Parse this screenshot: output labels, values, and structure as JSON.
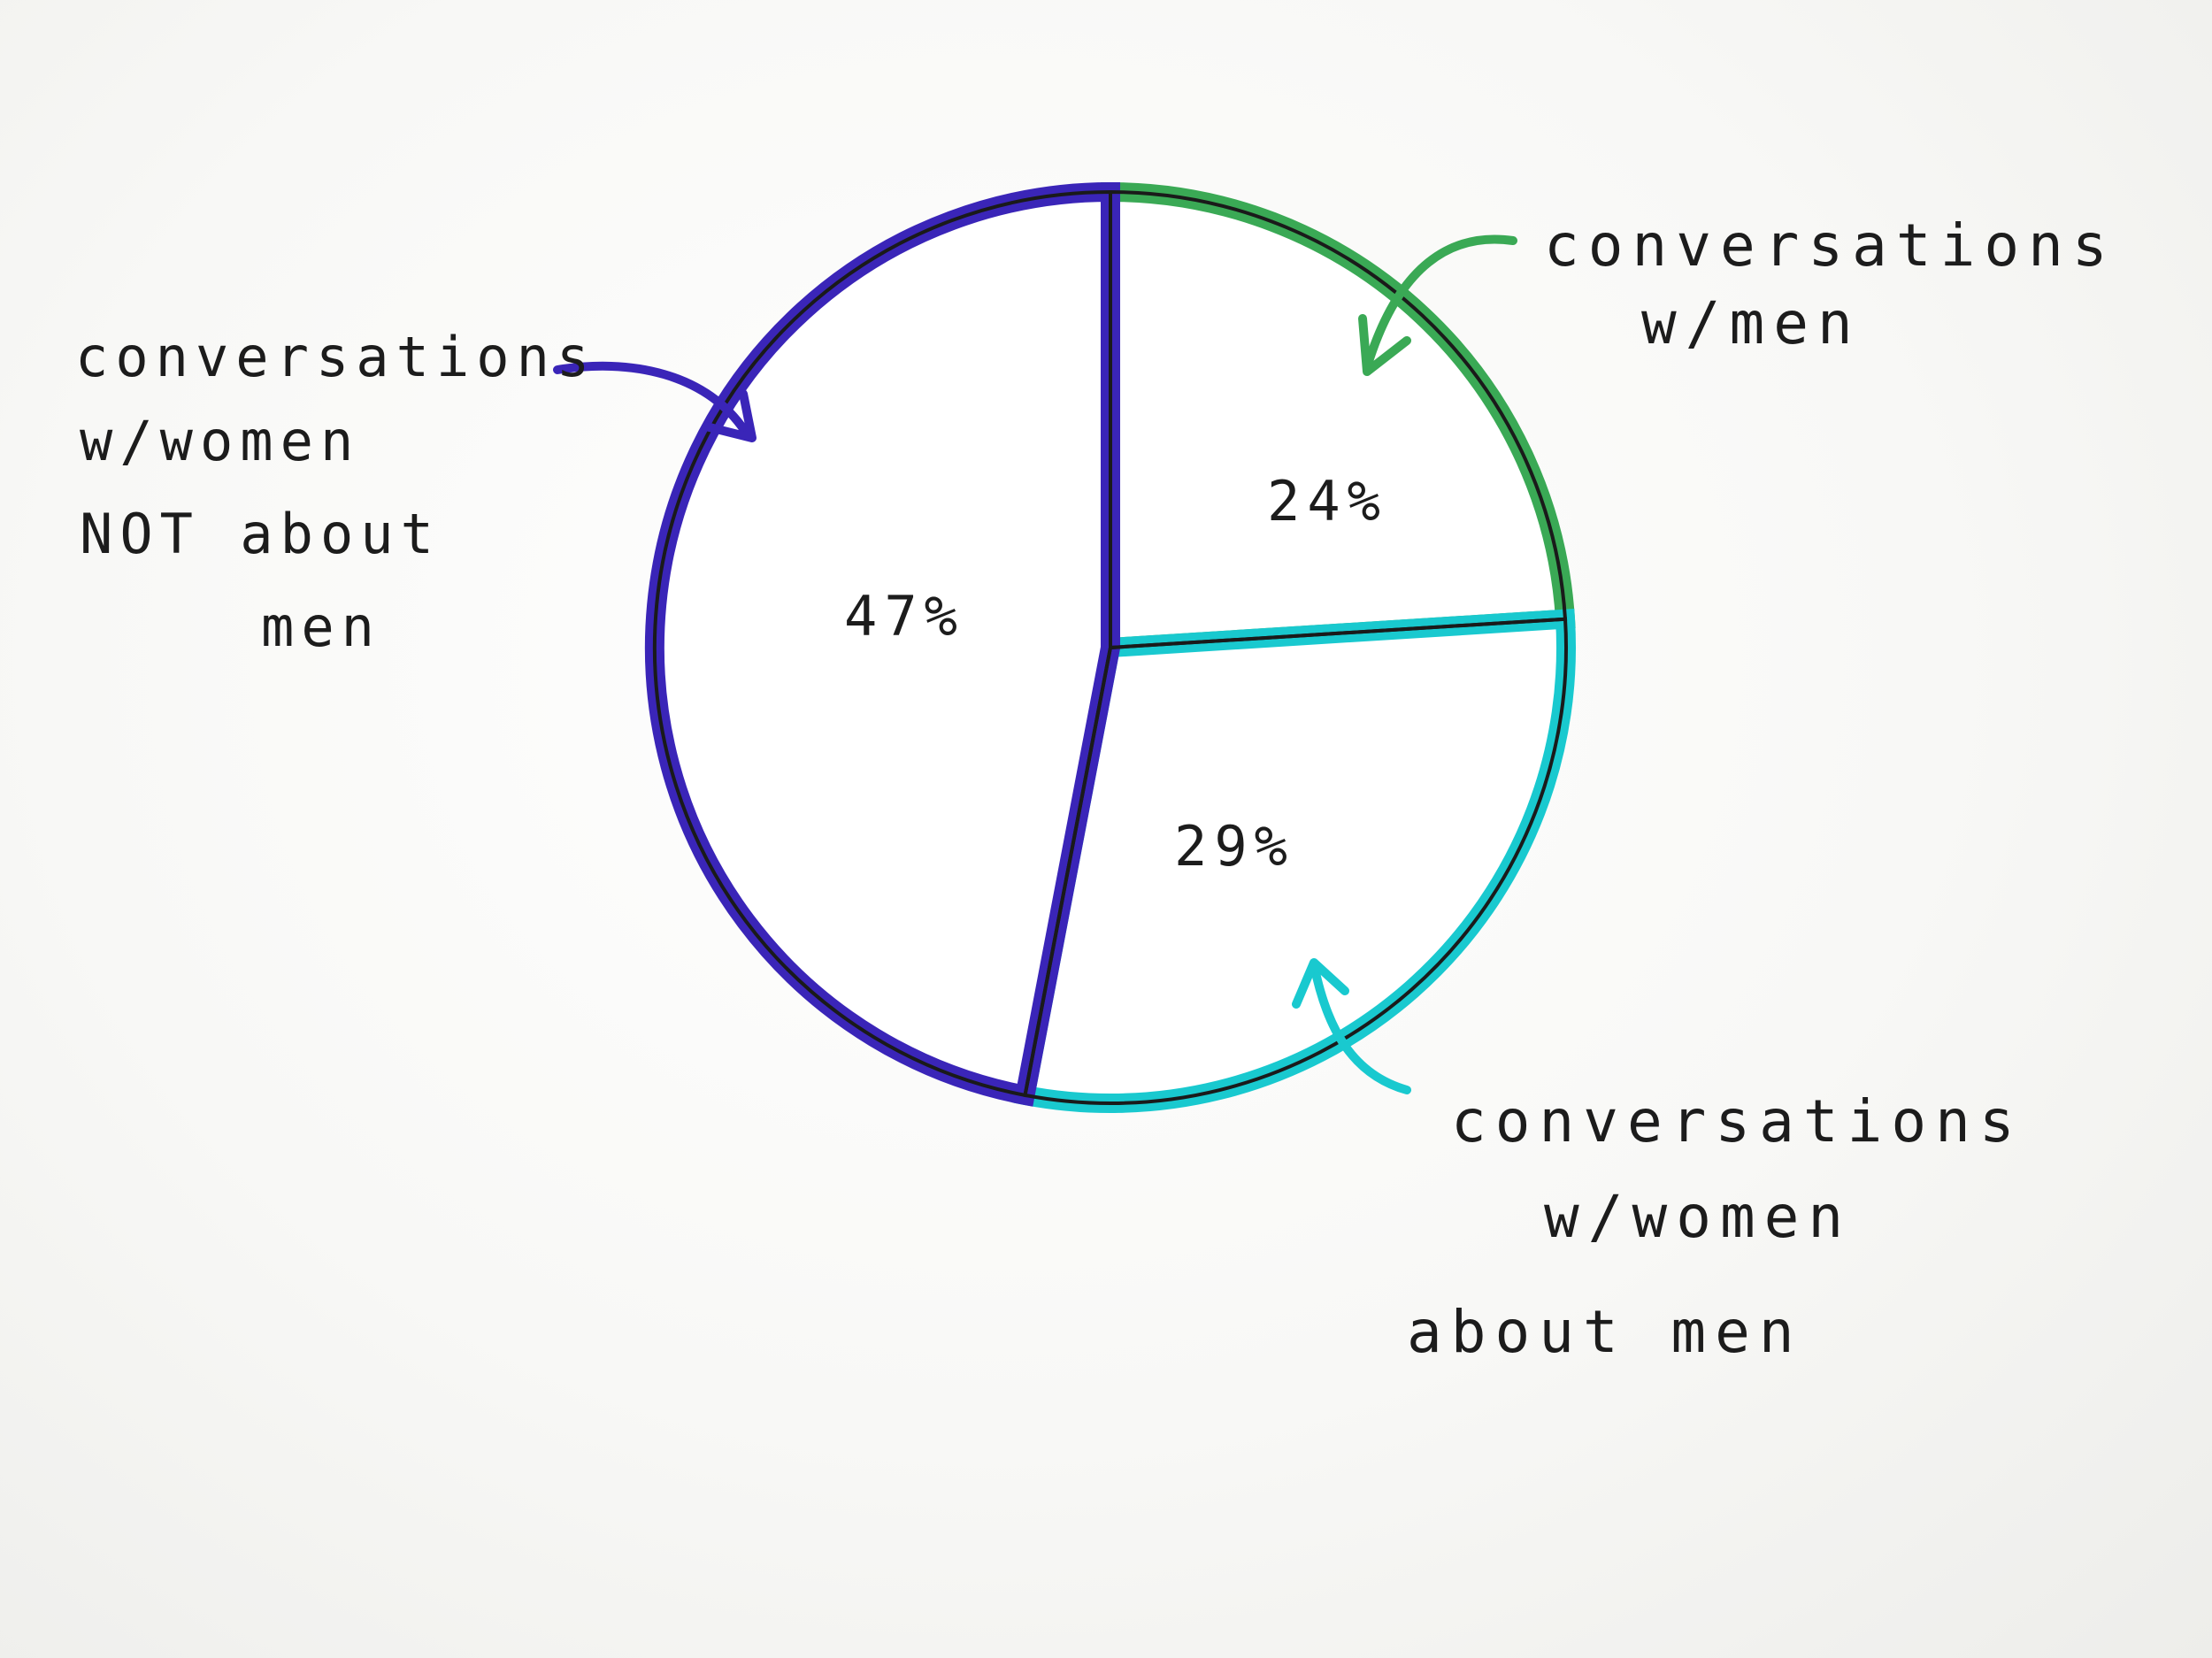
{
  "chart_data": {
    "type": "pie",
    "title": "",
    "start": "12 o'clock, clockwise",
    "slices": [
      {
        "value": 24,
        "label": "24%",
        "description_lines": [
          "conversations",
          "w/men"
        ],
        "color": "#3aa955"
      },
      {
        "value": 29,
        "label": "29%",
        "description_lines": [
          "conversations",
          "w/women",
          "about men"
        ],
        "color": "#19c9cf"
      },
      {
        "value": 47,
        "label": "47%",
        "description_lines": [
          "conversations",
          "w/women",
          "NOT about",
          "men"
        ],
        "color": "#3a25b8"
      }
    ],
    "legend": "none (hand-written labels with arrows)",
    "outline_color": "#1a1a1a"
  }
}
